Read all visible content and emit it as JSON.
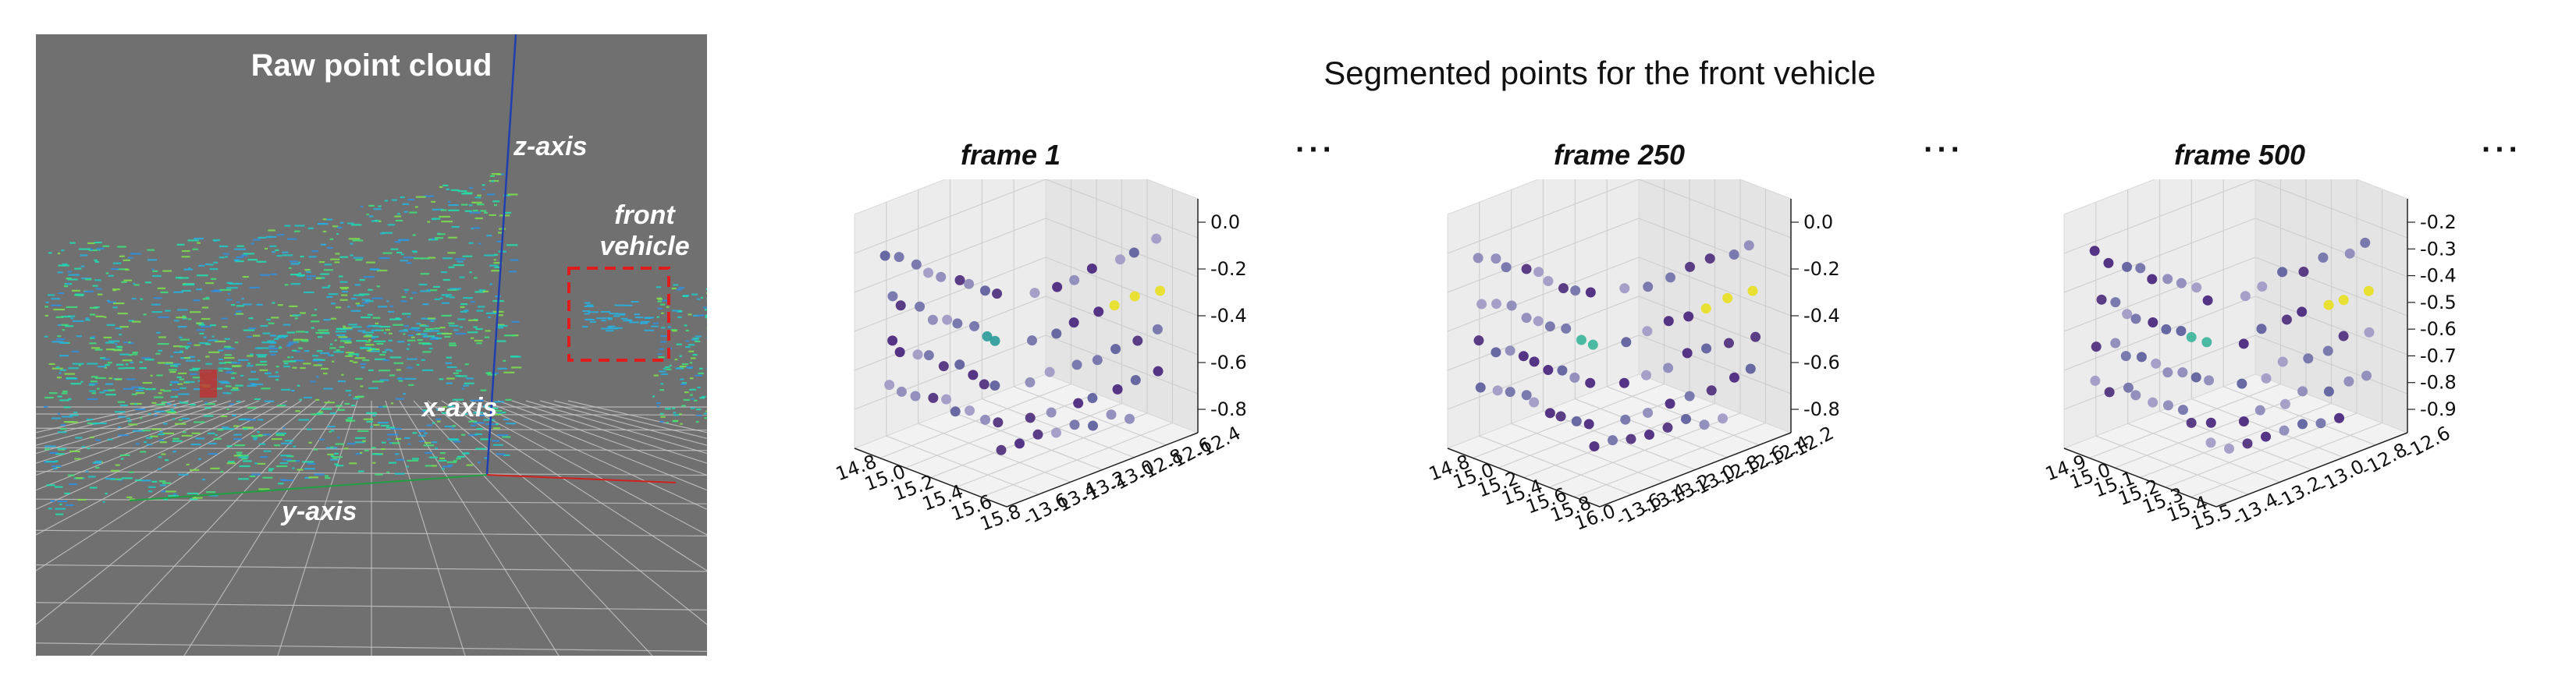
{
  "raw_panel": {
    "title": "Raw point cloud",
    "z_axis_label": "z-axis",
    "x_axis_label": "x-axis",
    "y_axis_label": "y-axis",
    "front_vehicle_label_line1": "front",
    "front_vehicle_label_line2": "vehicle",
    "colors": {
      "background": "#707070",
      "grid": "#c8c8c8",
      "z_axis": "#1f3fb0",
      "box": "#e01b1b"
    }
  },
  "segmented": {
    "title": "Segmented points for the front vehicle",
    "ellipsis": "···"
  },
  "chart_data": [
    {
      "type": "scatter",
      "title": "frame 1",
      "x_ticks": [
        "14.8",
        "15.0",
        "15.2",
        "15.4",
        "15.6",
        "15.8"
      ],
      "y_ticks": [
        "-13.6",
        "-13.4",
        "-13.2",
        "-13.0",
        "-12.8",
        "-12.6",
        "-12.4"
      ],
      "z_ticks": [
        "0.0",
        "-0.2",
        "-0.4",
        "-0.6",
        "-0.8"
      ],
      "zlim": [
        -0.9,
        0.1
      ],
      "grid": true
    },
    {
      "type": "scatter",
      "title": "frame 250",
      "x_ticks": [
        "14.8",
        "15.0",
        "15.2",
        "15.4",
        "15.6",
        "15.8",
        "16.0"
      ],
      "y_ticks": [
        "-13.6",
        "-13.4",
        "-13.2",
        "-13.0",
        "-12.8",
        "-12.6",
        "-12.4",
        "-12.2"
      ],
      "z_ticks": [
        "0.0",
        "-0.2",
        "-0.4",
        "-0.6",
        "-0.8"
      ],
      "zlim": [
        -0.9,
        0.1
      ],
      "grid": true
    },
    {
      "type": "scatter",
      "title": "frame 500",
      "x_ticks": [
        "14.9",
        "15.0",
        "15.1",
        "15.2",
        "15.3",
        "15.4",
        "15.5"
      ],
      "y_ticks": [
        "-13.4",
        "-13.2",
        "-13.0",
        "-12.8",
        "-12.6"
      ],
      "z_ticks": [
        "-0.2",
        "-0.3",
        "-0.4",
        "-0.5",
        "-0.6",
        "-0.7",
        "-0.8",
        "-0.9"
      ],
      "zlim": [
        -0.9,
        -0.15
      ],
      "grid": true
    }
  ]
}
